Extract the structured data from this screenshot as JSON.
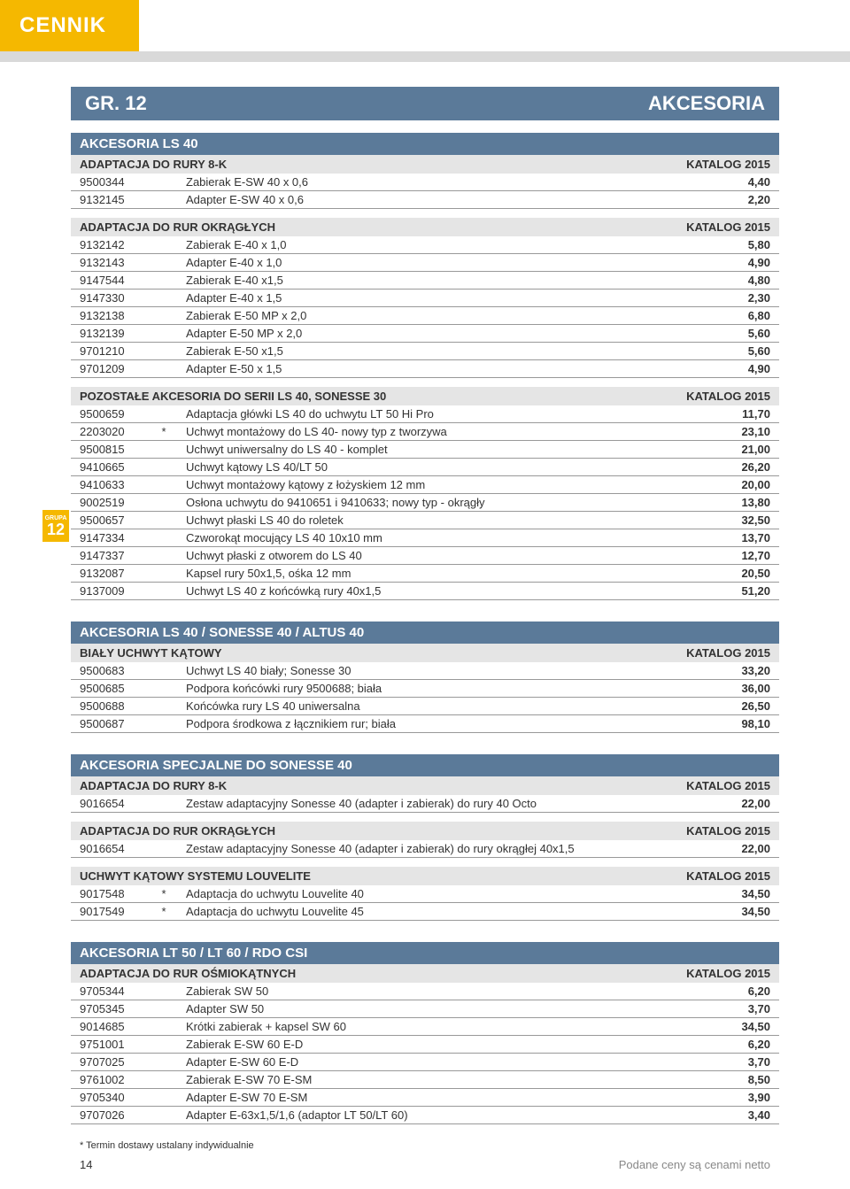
{
  "header": {
    "tab": "CENNIK"
  },
  "grbar": {
    "left": "GR. 12",
    "right": "AKCESORIA"
  },
  "sideBadge": {
    "top": "GRUPA",
    "num": "12"
  },
  "sections": [
    {
      "type": "blue",
      "text": "AKCESORIA LS 40"
    },
    {
      "type": "grey",
      "left": "ADAPTACJA DO RURY 8-K",
      "right": "KATALOG 2015"
    },
    {
      "type": "rows",
      "rows": [
        [
          "9500344",
          "",
          "Zabierak E-SW 40 x 0,6",
          "4,40"
        ],
        [
          "9132145",
          "",
          "Adapter E-SW 40 x 0,6",
          "2,20"
        ]
      ]
    },
    {
      "type": "grey",
      "left": "ADAPTACJA DO RUR OKRĄGŁYCH",
      "right": "KATALOG 2015"
    },
    {
      "type": "rows",
      "rows": [
        [
          "9132142",
          "",
          "Zabierak E-40 x 1,0",
          "5,80"
        ],
        [
          "9132143",
          "",
          "Adapter E-40 x 1,0",
          "4,90"
        ],
        [
          "9147544",
          "",
          "Zabierak E-40 x1,5",
          "4,80"
        ],
        [
          "9147330",
          "",
          "Adapter E-40 x 1,5",
          "2,30"
        ],
        [
          "9132138",
          "",
          "Zabierak E-50 MP x 2,0",
          "6,80"
        ],
        [
          "9132139",
          "",
          "Adapter E-50 MP x 2,0",
          "5,60"
        ],
        [
          "9701210",
          "",
          "Zabierak E-50 x1,5",
          "5,60"
        ],
        [
          "9701209",
          "",
          "Adapter E-50 x 1,5",
          "4,90"
        ]
      ]
    },
    {
      "type": "grey",
      "left": "POZOSTAŁE AKCESORIA DO SERII LS 40, SONESSE 30",
      "right": "KATALOG 2015"
    },
    {
      "type": "rows",
      "badge": true,
      "rows": [
        [
          "9500659",
          "",
          "Adaptacja główki LS 40 do uchwytu LT 50 Hi Pro",
          "11,70"
        ],
        [
          "2203020",
          "*",
          "Uchwyt montażowy do LS 40- nowy typ z tworzywa",
          "23,10"
        ],
        [
          "9500815",
          "",
          "Uchwyt uniwersalny do LS 40 - komplet",
          "21,00"
        ],
        [
          "9410665",
          "",
          "Uchwyt kątowy LS 40/LT 50",
          "26,20"
        ],
        [
          "9410633",
          "",
          "Uchwyt montażowy kątowy z łożyskiem 12 mm",
          "20,00"
        ],
        [
          "9002519",
          "",
          "Osłona uchwytu do 9410651 i 9410633; nowy typ - okrągły",
          "13,80"
        ],
        [
          "9500657",
          "",
          "Uchwyt płaski LS 40 do roletek",
          "32,50"
        ],
        [
          "9147334",
          "",
          "Czworokąt mocujący LS 40 10x10 mm",
          "13,70"
        ],
        [
          "9147337",
          "",
          "Uchwyt płaski z otworem do LS 40",
          "12,70"
        ],
        [
          "9132087",
          "",
          "Kapsel rury 50x1,5, ośka 12 mm",
          "20,50"
        ],
        [
          "9137009",
          "",
          "Uchwyt LS 40 z końcówką rury 40x1,5",
          "51,20"
        ]
      ]
    },
    {
      "type": "blue",
      "text": "AKCESORIA LS 40 / SONESSE 40 / ALTUS 40"
    },
    {
      "type": "grey",
      "left": "BIAŁY UCHWYT KĄTOWY",
      "right": "KATALOG 2015"
    },
    {
      "type": "rows",
      "rows": [
        [
          "9500683",
          "",
          "Uchwyt LS 40 biały; Sonesse 30",
          "33,20"
        ],
        [
          "9500685",
          "",
          "Podpora końcówki rury 9500688; biała",
          "36,00"
        ],
        [
          "9500688",
          "",
          "Końcówka rury LS 40 uniwersalna",
          "26,50"
        ],
        [
          "9500687",
          "",
          "Podpora środkowa z łącznikiem rur; biała",
          "98,10"
        ]
      ]
    },
    {
      "type": "blue",
      "text": "AKCESORIA SPECJALNE DO SONESSE 40"
    },
    {
      "type": "grey",
      "left": "ADAPTACJA DO RURY 8-K",
      "right": "KATALOG 2015"
    },
    {
      "type": "rows",
      "rows": [
        [
          "9016654",
          "",
          "Zestaw adaptacyjny Sonesse 40 (adapter i zabierak) do rury 40 Octo",
          "22,00"
        ]
      ]
    },
    {
      "type": "grey",
      "left": "ADAPTACJA DO RUR OKRĄGŁYCH",
      "right": "KATALOG 2015"
    },
    {
      "type": "rows",
      "rows": [
        [
          "9016654",
          "",
          "Zestaw adaptacyjny Sonesse 40 (adapter i zabierak) do rury okrągłej 40x1,5",
          "22,00"
        ]
      ]
    },
    {
      "type": "grey",
      "left": "UCHWYT KĄTOWY SYSTEMU LOUVELITE",
      "right": "KATALOG 2015"
    },
    {
      "type": "rows",
      "rows": [
        [
          "9017548",
          "*",
          "Adaptacja do uchwytu Louvelite 40",
          "34,50"
        ],
        [
          "9017549",
          "*",
          "Adaptacja do uchwytu Louvelite 45",
          "34,50"
        ]
      ]
    },
    {
      "type": "blue",
      "text": "AKCESORIA LT 50 / LT 60 / RDO CSI"
    },
    {
      "type": "grey",
      "left": "ADAPTACJA DO RUR OŚMIOKĄTNYCH",
      "right": "KATALOG 2015"
    },
    {
      "type": "rows",
      "rows": [
        [
          "9705344",
          "",
          "Zabierak SW 50",
          "6,20"
        ],
        [
          "9705345",
          "",
          "Adapter SW 50",
          "3,70"
        ],
        [
          "9014685",
          "",
          "Krótki zabierak + kapsel SW 60",
          "34,50"
        ],
        [
          "9751001",
          "",
          "Zabierak E-SW 60 E-D",
          "6,20"
        ],
        [
          "9707025",
          "",
          "Adapter E-SW 60 E-D",
          "3,70"
        ],
        [
          "9761002",
          "",
          "Zabierak E-SW 70 E-SM",
          "8,50"
        ],
        [
          "9705340",
          "",
          "Adapter E-SW 70 E-SM",
          "3,90"
        ],
        [
          "9707026",
          "",
          "Adapter E-63x1,5/1,6 (adaptor LT 50/LT 60)",
          "3,40"
        ]
      ]
    }
  ],
  "footnote": "* Termin dostawy ustalany indywidualnie",
  "footer": {
    "page": "14",
    "note": "Podane ceny są cenami netto"
  }
}
